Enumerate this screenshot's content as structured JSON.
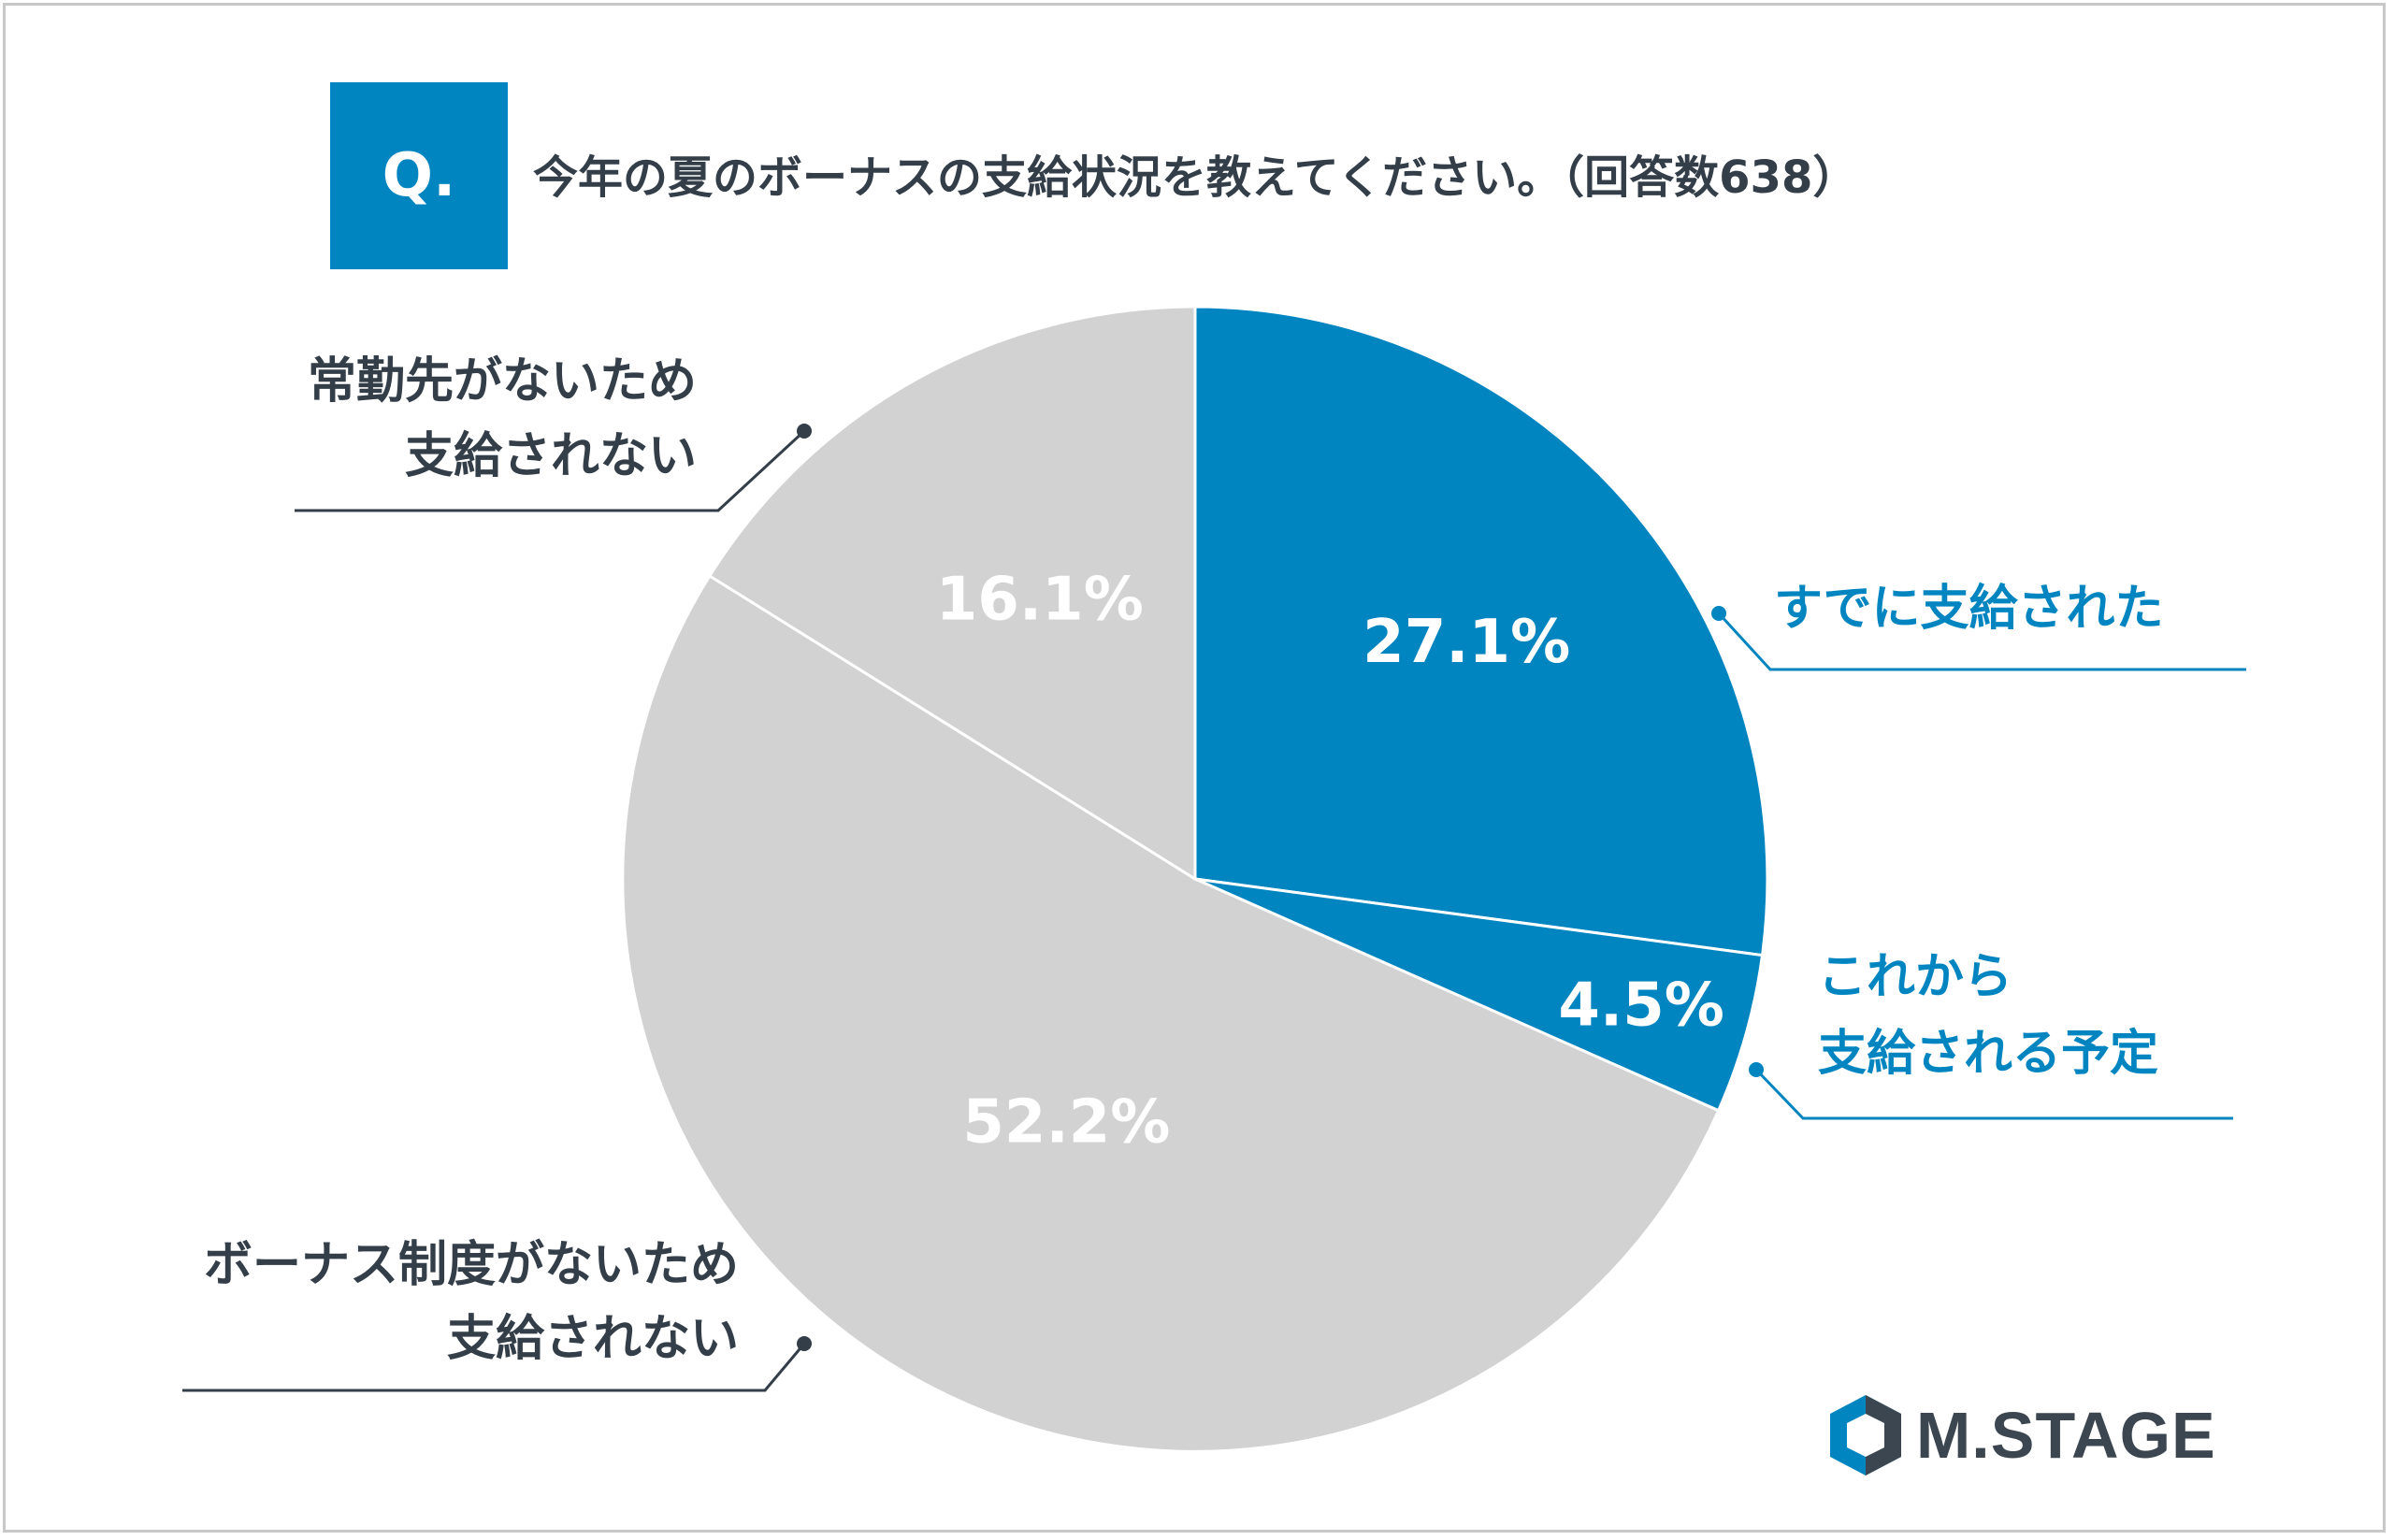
{
  "question": {
    "badge": "Q.",
    "text": "今年の夏のボーナスの支給状況を教えてください。（回答数638）"
  },
  "chart_data": {
    "type": "pie",
    "title": "今年の夏のボーナスの支給状況を教えてください。（回答数638）",
    "respondents": 638,
    "slices": [
      {
        "label_lines": [
          "すでに支給された"
        ],
        "value": 27.1,
        "value_label": "27.1%",
        "color": "#0085c1",
        "label_color": "#0085c1"
      },
      {
        "label_lines": [
          "これから",
          "支給される予定"
        ],
        "value": 4.5,
        "value_label": "4.5%",
        "color": "#0085c1",
        "label_color": "#0085c1"
      },
      {
        "label_lines": [
          "ボーナス制度がないため",
          "支給されない"
        ],
        "value": 52.2,
        "value_label": "52.2%",
        "color": "#d3d2d3",
        "label_color": "#333e48"
      },
      {
        "label_lines": [
          "常勤先がないため",
          "支給されない"
        ],
        "value": 16.1,
        "value_label": "16.1%",
        "color": "#d3d2d3",
        "label_color": "#333e48"
      }
    ]
  },
  "brand": {
    "name": "M.STAGE",
    "colors": {
      "primary": "#0085c1",
      "gray": "#d3d2d3",
      "dark": "#333e48"
    }
  }
}
